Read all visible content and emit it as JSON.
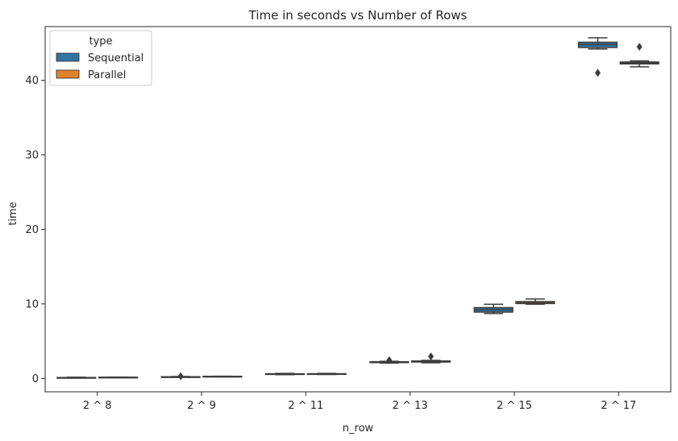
{
  "chart_data": {
    "type": "box",
    "title": "Time in seconds vs Number of Rows",
    "xlabel": "n_row",
    "ylabel": "time",
    "categories": [
      "2 ^ 8",
      "2 ^ 9",
      "2 ^ 11",
      "2 ^ 13",
      "2 ^ 15",
      "2 ^ 17"
    ],
    "ylim": [
      -1.8,
      47.2
    ],
    "yticks": [
      0,
      10,
      20,
      30,
      40
    ],
    "grid": false,
    "legend": {
      "title": "type",
      "placement": "top-left"
    },
    "series": [
      {
        "name": "Sequential",
        "color": "#3274a1",
        "boxes": [
          {
            "whislo": 0.05,
            "q1": 0.08,
            "med": 0.1,
            "q3": 0.12,
            "whishi": 0.16,
            "fliers": []
          },
          {
            "whislo": 0.16,
            "q1": 0.18,
            "med": 0.2,
            "q3": 0.22,
            "whishi": 0.25,
            "fliers": [
              0.3
            ]
          },
          {
            "whislo": 0.5,
            "q1": 0.55,
            "med": 0.58,
            "q3": 0.62,
            "whishi": 0.68,
            "fliers": []
          },
          {
            "whislo": 2.05,
            "q1": 2.12,
            "med": 2.18,
            "q3": 2.24,
            "whishi": 2.3,
            "fliers": [
              2.45
            ]
          },
          {
            "whislo": 8.7,
            "q1": 8.9,
            "med": 9.2,
            "q3": 9.5,
            "whishi": 9.95,
            "fliers": []
          },
          {
            "whislo": 44.2,
            "q1": 44.4,
            "med": 44.8,
            "q3": 45.1,
            "whishi": 45.7,
            "fliers": [
              41.0
            ]
          }
        ]
      },
      {
        "name": "Parallel",
        "color": "#e1812c",
        "boxes": [
          {
            "whislo": 0.1,
            "q1": 0.12,
            "med": 0.14,
            "q3": 0.16,
            "whishi": 0.18,
            "fliers": []
          },
          {
            "whislo": 0.22,
            "q1": 0.24,
            "med": 0.26,
            "q3": 0.28,
            "whishi": 0.3,
            "fliers": []
          },
          {
            "whislo": 0.52,
            "q1": 0.56,
            "med": 0.6,
            "q3": 0.63,
            "whishi": 0.68,
            "fliers": []
          },
          {
            "whislo": 2.1,
            "q1": 2.2,
            "med": 2.28,
            "q3": 2.34,
            "whishi": 2.42,
            "fliers": [
              2.95
            ]
          },
          {
            "whislo": 9.95,
            "q1": 10.05,
            "med": 10.2,
            "q3": 10.3,
            "whishi": 10.65,
            "fliers": []
          },
          {
            "whislo": 41.8,
            "q1": 42.2,
            "med": 42.35,
            "q3": 42.45,
            "whishi": 42.6,
            "fliers": [
              44.5
            ]
          }
        ]
      }
    ]
  }
}
